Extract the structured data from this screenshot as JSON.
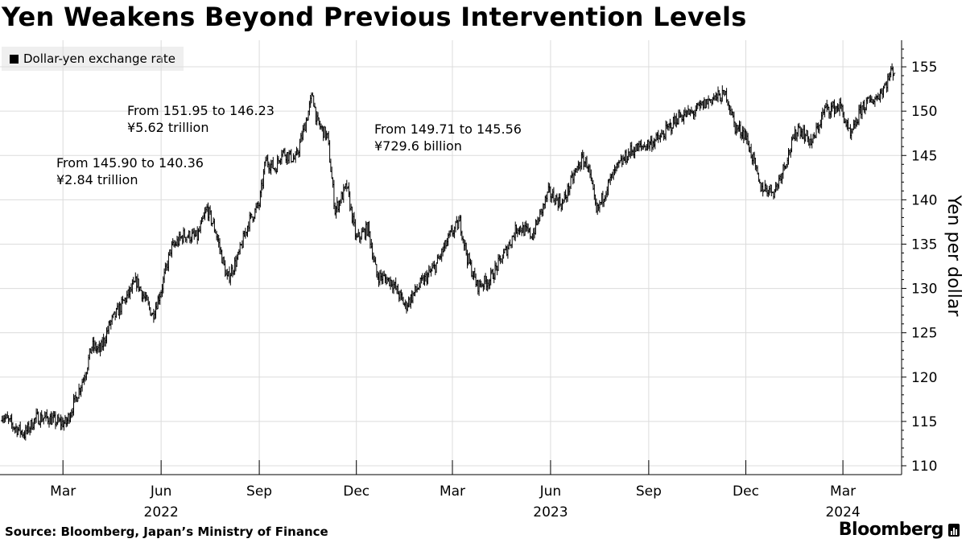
{
  "header": {
    "title": "Yen Weakens Beyond Previous Intervention Levels"
  },
  "legend": {
    "label": "Dollar-yen exchange rate"
  },
  "annotations": [
    {
      "line1": "From 145.90 to 140.36",
      "line2": "¥2.84 trillion"
    },
    {
      "line1": "From 151.95 to 146.23",
      "line2": "¥5.62 trillion"
    },
    {
      "line1": "From 149.71 to 145.56",
      "line2": "¥729.6 billion"
    }
  ],
  "footer": {
    "source": "Source: Bloomberg, Japan’s Ministry of Finance",
    "brand": "Bloomberg"
  },
  "chart_data": {
    "type": "line",
    "ylabel": "Yen per dollar",
    "ylim": [
      109,
      158
    ],
    "yticks": [
      110,
      115,
      120,
      125,
      130,
      135,
      140,
      145,
      150,
      155
    ],
    "xlim": [
      "2022-01-01",
      "2024-04-25"
    ],
    "x_ticks": [
      {
        "date": "2022-03-01",
        "label": "Mar"
      },
      {
        "date": "2022-06-01",
        "label": "Jun"
      },
      {
        "date": "2022-09-01",
        "label": "Sep"
      },
      {
        "date": "2022-12-01",
        "label": "Dec"
      },
      {
        "date": "2023-03-01",
        "label": "Mar"
      },
      {
        "date": "2023-06-01",
        "label": "Jun"
      },
      {
        "date": "2023-09-01",
        "label": "Sep"
      },
      {
        "date": "2023-12-01",
        "label": "Dec"
      },
      {
        "date": "2024-03-01",
        "label": "Mar"
      }
    ],
    "year_labels": [
      {
        "date": "2022-06-01",
        "label": "2022"
      },
      {
        "date": "2023-06-01",
        "label": "2023"
      },
      {
        "date": "2024-03-01",
        "label": "2024"
      }
    ],
    "grid": true,
    "legend_position": "top-left",
    "series": [
      {
        "name": "Dollar-yen exchange rate",
        "points": [
          [
            "2022-01-03",
            115.8
          ],
          [
            "2022-01-12",
            114.6
          ],
          [
            "2022-01-24",
            113.6
          ],
          [
            "2022-02-04",
            115.4
          ],
          [
            "2022-02-15",
            115.4
          ],
          [
            "2022-02-24",
            114.9
          ],
          [
            "2022-03-04",
            114.8
          ],
          [
            "2022-03-14",
            117.9
          ],
          [
            "2022-03-22",
            120.5
          ],
          [
            "2022-03-28",
            123.5
          ],
          [
            "2022-04-05",
            123.0
          ],
          [
            "2022-04-14",
            126.0
          ],
          [
            "2022-04-27",
            128.5
          ],
          [
            "2022-05-09",
            130.8
          ],
          [
            "2022-05-24",
            127.0
          ],
          [
            "2022-06-01",
            129.8
          ],
          [
            "2022-06-10",
            134.4
          ],
          [
            "2022-06-22",
            136.0
          ],
          [
            "2022-07-05",
            135.8
          ],
          [
            "2022-07-14",
            139.0
          ],
          [
            "2022-07-22",
            136.5
          ],
          [
            "2022-08-02",
            131.0
          ],
          [
            "2022-08-12",
            133.5
          ],
          [
            "2022-08-22",
            137.5
          ],
          [
            "2022-09-01",
            139.5
          ],
          [
            "2022-09-07",
            144.5
          ],
          [
            "2022-09-16",
            143.5
          ],
          [
            "2022-09-22",
            145.5
          ],
          [
            "2022-10-05",
            144.5
          ],
          [
            "2022-10-14",
            148.5
          ],
          [
            "2022-10-21",
            151.9
          ],
          [
            "2022-10-25",
            148.8
          ],
          [
            "2022-11-04",
            147.0
          ],
          [
            "2022-11-11",
            138.8
          ],
          [
            "2022-11-22",
            141.5
          ],
          [
            "2022-12-01",
            135.5
          ],
          [
            "2022-12-12",
            136.8
          ],
          [
            "2022-12-20",
            131.5
          ],
          [
            "2023-01-03",
            130.8
          ],
          [
            "2023-01-16",
            128.0
          ],
          [
            "2023-01-27",
            130.0
          ],
          [
            "2023-02-13",
            132.5
          ],
          [
            "2023-02-28",
            136.2
          ],
          [
            "2023-03-08",
            137.5
          ],
          [
            "2023-03-15",
            133.5
          ],
          [
            "2023-03-24",
            130.3
          ],
          [
            "2023-04-05",
            131.0
          ],
          [
            "2023-04-20",
            134.2
          ],
          [
            "2023-05-01",
            137.0
          ],
          [
            "2023-05-15",
            136.0
          ],
          [
            "2023-05-30",
            140.8
          ],
          [
            "2023-06-12",
            139.5
          ],
          [
            "2023-06-22",
            142.5
          ],
          [
            "2023-06-30",
            144.5
          ],
          [
            "2023-07-06",
            144.0
          ],
          [
            "2023-07-14",
            138.5
          ],
          [
            "2023-07-24",
            141.5
          ],
          [
            "2023-08-02",
            143.5
          ],
          [
            "2023-08-15",
            145.5
          ],
          [
            "2023-08-30",
            146.2
          ],
          [
            "2023-09-12",
            147.0
          ],
          [
            "2023-09-29",
            149.4
          ],
          [
            "2023-10-12",
            149.8
          ],
          [
            "2023-10-31",
            151.5
          ],
          [
            "2023-11-13",
            151.8
          ],
          [
            "2023-11-21",
            148.2
          ],
          [
            "2023-11-30",
            147.5
          ],
          [
            "2023-12-08",
            144.5
          ],
          [
            "2023-12-14",
            141.5
          ],
          [
            "2023-12-28",
            141.0
          ],
          [
            "2024-01-10",
            145.2
          ],
          [
            "2024-01-19",
            148.2
          ],
          [
            "2024-02-01",
            146.4
          ],
          [
            "2024-02-13",
            150.2
          ],
          [
            "2024-02-28",
            150.5
          ],
          [
            "2024-03-08",
            147.0
          ],
          [
            "2024-03-19",
            150.5
          ],
          [
            "2024-04-02",
            151.6
          ],
          [
            "2024-04-10",
            153.0
          ],
          [
            "2024-04-16",
            154.6
          ],
          [
            "2024-04-19",
            154.5
          ]
        ]
      }
    ]
  }
}
